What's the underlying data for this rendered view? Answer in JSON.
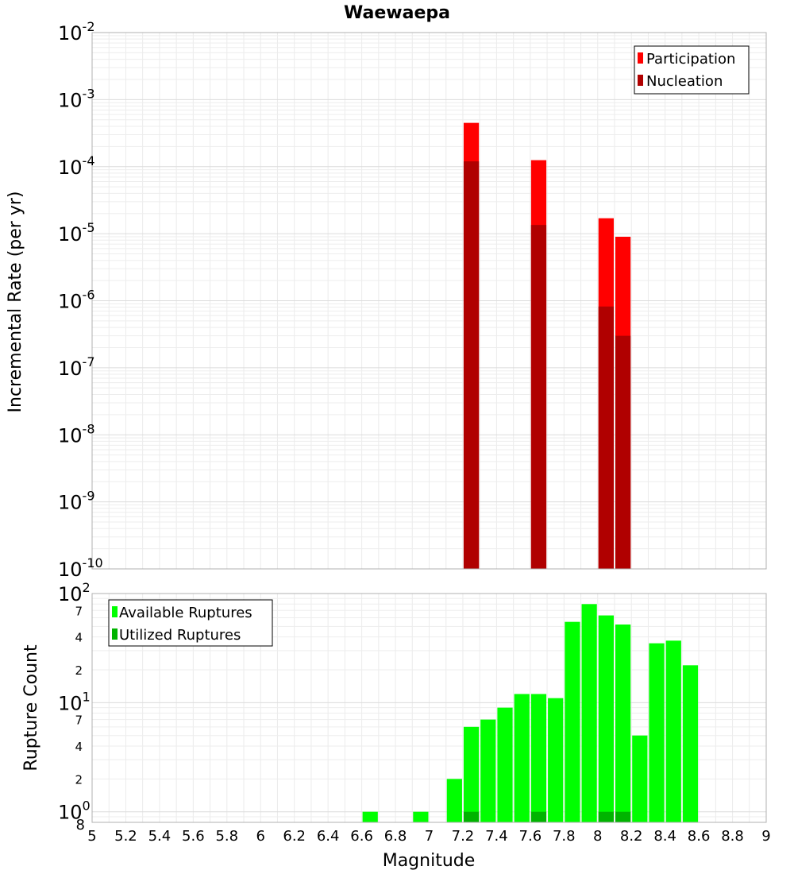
{
  "chart_data": [
    {
      "type": "bar",
      "title": "Waewaepa",
      "xlabel": "Magnitude",
      "ylabel": "Incremental Rate (per yr)",
      "yscale": "log",
      "xlim": [
        5,
        9
      ],
      "ylim": [
        1e-10,
        0.01
      ],
      "bin_width": 0.1,
      "grid": true,
      "legend_position": "top-right",
      "y_ticks": [
        {
          "base": "10",
          "exp": "-10"
        },
        {
          "base": "10",
          "exp": "-9"
        },
        {
          "base": "10",
          "exp": "-8"
        },
        {
          "base": "10",
          "exp": "-7"
        },
        {
          "base": "10",
          "exp": "-6"
        },
        {
          "base": "10",
          "exp": "-5"
        },
        {
          "base": "10",
          "exp": "-4"
        },
        {
          "base": "10",
          "exp": "-3"
        },
        {
          "base": "10",
          "exp": "-2"
        }
      ],
      "series": [
        {
          "name": "Participation",
          "color": "#ff0000",
          "x": [
            7.25,
            7.65,
            8.05,
            8.15
          ],
          "values": [
            0.00045,
            0.000125,
            1.7e-05,
            9e-06
          ]
        },
        {
          "name": "Nucleation",
          "color": "#b00000",
          "x": [
            7.25,
            7.65,
            8.05,
            8.15
          ],
          "values": [
            0.00012,
            1.35e-05,
            8.2e-07,
            3e-07
          ]
        }
      ]
    },
    {
      "type": "bar",
      "xlabel": "Magnitude",
      "ylabel": "Rupture Count",
      "yscale": "log",
      "xlim": [
        5,
        9
      ],
      "ylim": [
        0.8,
        100
      ],
      "bin_width": 0.1,
      "grid": true,
      "legend_position": "top-left",
      "x_ticks": [
        "5",
        "5.2",
        "5.4",
        "5.6",
        "5.8",
        "6",
        "6.2",
        "6.4",
        "6.6",
        "6.8",
        "7",
        "7.2",
        "7.4",
        "7.6",
        "7.8",
        "8",
        "8.2",
        "8.4",
        "8.6",
        "8.8",
        "9"
      ],
      "y_major_ticks": [
        {
          "value": 1,
          "base": "10",
          "exp": "0"
        },
        {
          "value": 10,
          "base": "10",
          "exp": "1"
        },
        {
          "value": 100,
          "base": "10",
          "exp": "2"
        }
      ],
      "y_minor_ticks": [
        {
          "value": 0.8,
          "label": "8"
        },
        {
          "value": 2,
          "label": "2"
        },
        {
          "value": 4,
          "label": "4"
        },
        {
          "value": 7,
          "label": "7"
        },
        {
          "value": 20,
          "label": "2"
        },
        {
          "value": 40,
          "label": "4"
        },
        {
          "value": 70,
          "label": "7"
        }
      ],
      "series": [
        {
          "name": "Available Ruptures",
          "color": "#00ff00",
          "x": [
            6.65,
            6.95,
            7.15,
            7.25,
            7.35,
            7.45,
            7.55,
            7.65,
            7.75,
            7.85,
            7.95,
            8.05,
            8.15,
            8.25,
            8.35,
            8.45,
            8.55
          ],
          "values": [
            1,
            1,
            2,
            6,
            7,
            9,
            12,
            12,
            11,
            55,
            80,
            63,
            52,
            5,
            35,
            37,
            22
          ]
        },
        {
          "name": "Utilized Ruptures",
          "color": "#00b400",
          "x": [
            7.25,
            7.65,
            8.05,
            8.15
          ],
          "values": [
            1,
            1,
            1,
            1
          ]
        }
      ]
    }
  ]
}
